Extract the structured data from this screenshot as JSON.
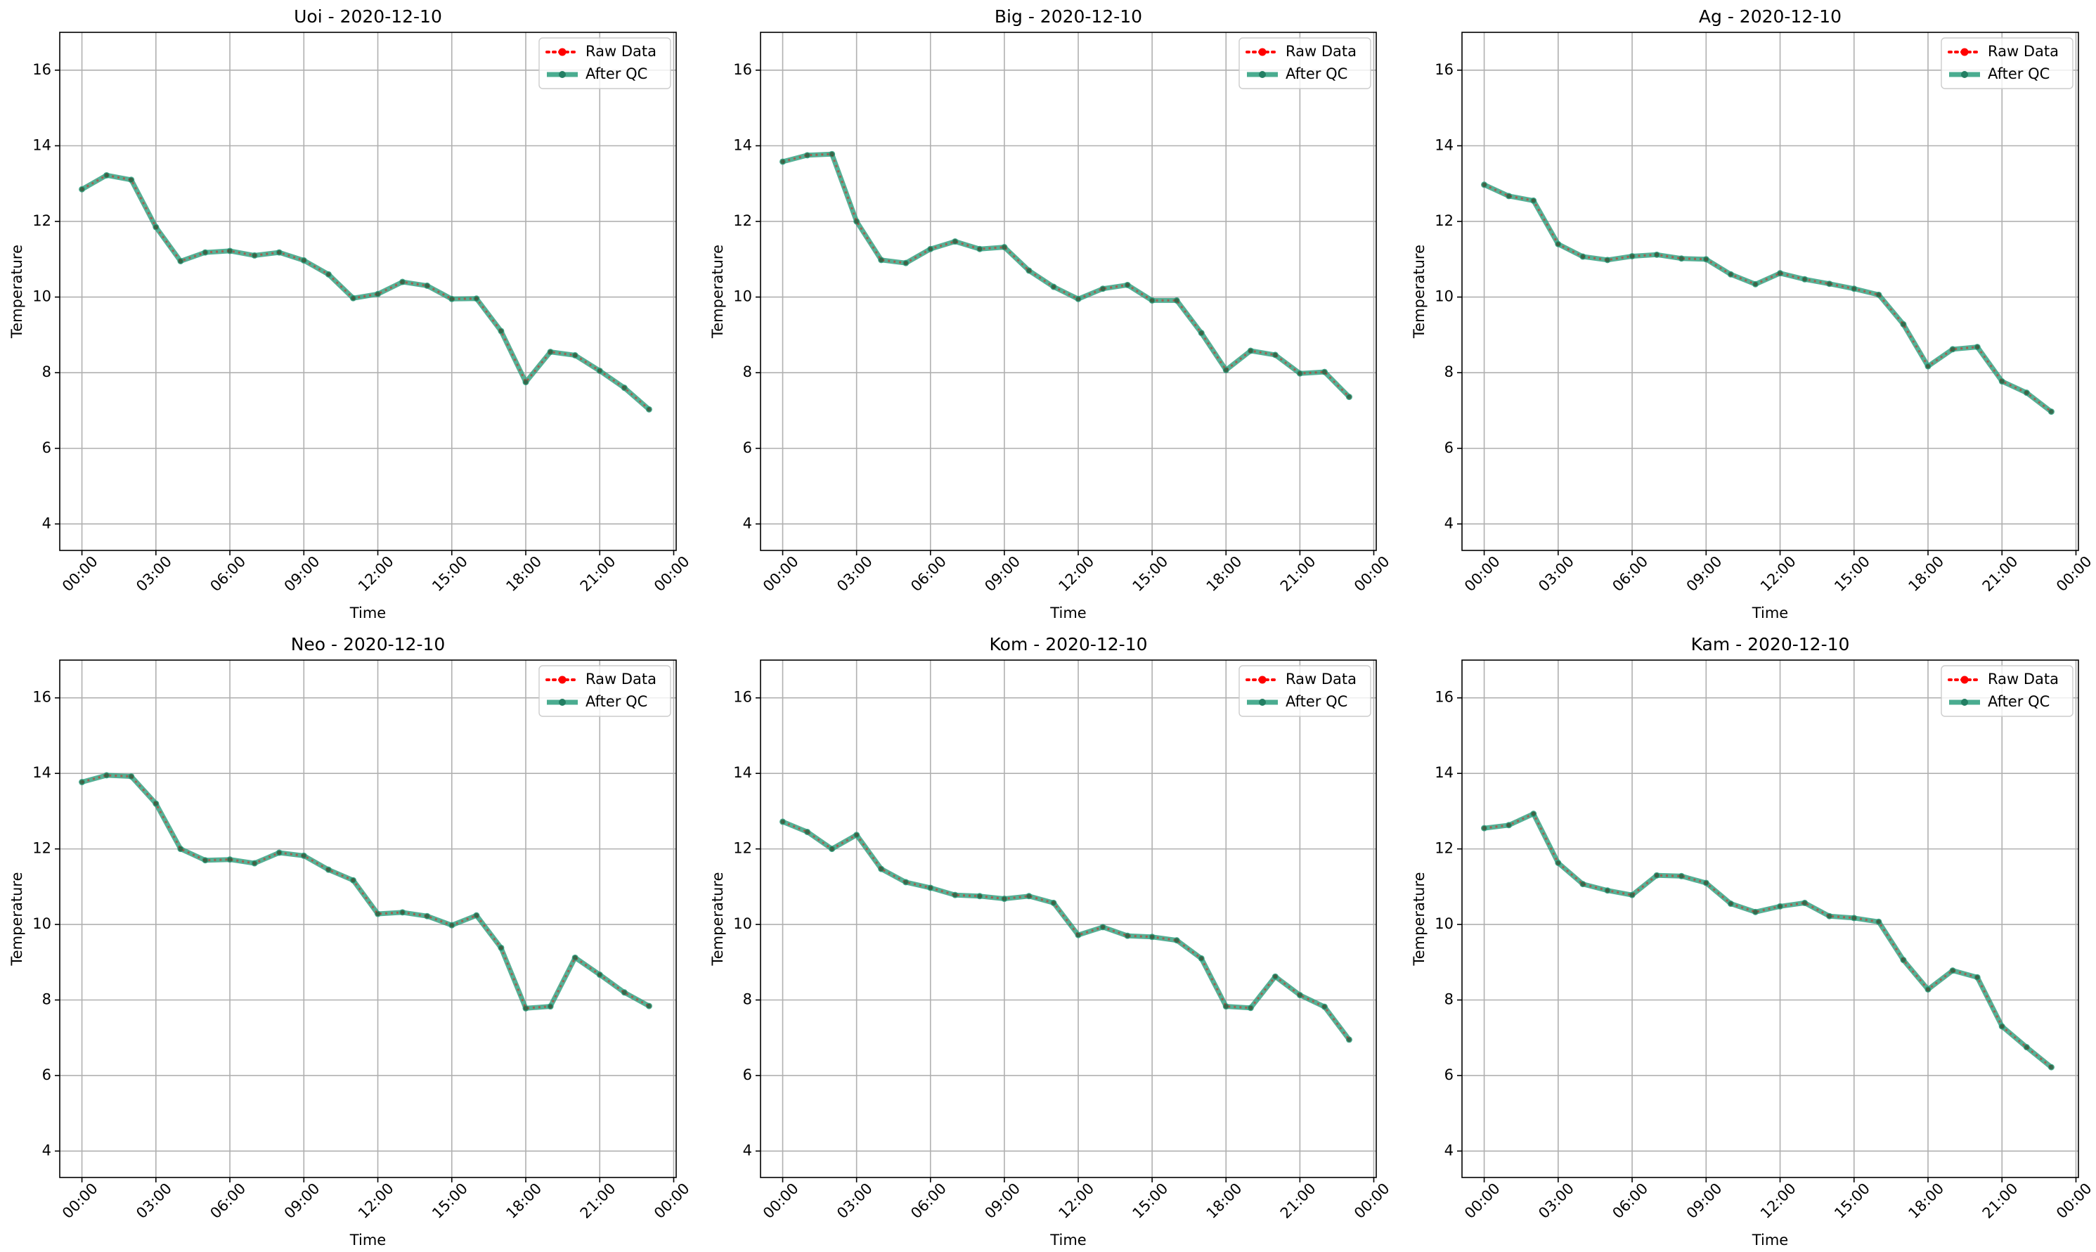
{
  "figure": {
    "y_ticks": [
      "4",
      "6",
      "8",
      "10",
      "12",
      "14",
      "16"
    ],
    "x_ticks": [
      "00:00",
      "03:00",
      "06:00",
      "09:00",
      "12:00",
      "15:00",
      "18:00",
      "21:00",
      "00:00"
    ]
  },
  "chart_data": [
    {
      "type": "line",
      "title": "Uoi - 2020-12-10",
      "xlabel": "Time",
      "ylabel": "Temperature",
      "ylim": [
        3.3,
        17.0
      ],
      "xlim": [
        -0.9,
        24.1
      ],
      "grid": true,
      "legend_position": "upper right",
      "x": [
        0,
        1,
        2,
        3,
        4,
        5,
        6,
        7,
        8,
        9,
        10,
        11,
        12,
        13,
        14,
        15,
        16,
        17,
        18,
        19,
        20,
        21,
        22,
        23
      ],
      "series": [
        {
          "name": "Raw Data",
          "color": "#ff0000",
          "style": "dotted",
          "marker": "circle",
          "values": [
            12.85,
            13.22,
            13.1,
            11.85,
            10.95,
            11.18,
            11.22,
            11.1,
            11.18,
            10.97,
            10.6,
            9.97,
            10.08,
            10.4,
            10.3,
            9.95,
            9.96,
            9.1,
            7.75,
            8.55,
            8.46,
            8.05,
            7.6,
            7.03
          ]
        },
        {
          "name": "After QC",
          "color": "#2a9d7c",
          "style": "solid",
          "marker": "circle",
          "values": [
            12.85,
            13.22,
            13.1,
            11.85,
            10.95,
            11.18,
            11.22,
            11.1,
            11.18,
            10.97,
            10.6,
            9.97,
            10.08,
            10.4,
            10.3,
            9.95,
            9.96,
            9.1,
            7.75,
            8.55,
            8.46,
            8.05,
            7.6,
            7.03
          ]
        }
      ]
    },
    {
      "type": "line",
      "title": "Big - 2020-12-10",
      "xlabel": "Time",
      "ylabel": "Temperature",
      "ylim": [
        3.3,
        17.0
      ],
      "xlim": [
        -0.9,
        24.1
      ],
      "grid": true,
      "legend_position": "upper right",
      "x": [
        0,
        1,
        2,
        3,
        4,
        5,
        6,
        7,
        8,
        9,
        10,
        11,
        12,
        13,
        14,
        15,
        16,
        17,
        18,
        19,
        20,
        21,
        22,
        23
      ],
      "series": [
        {
          "name": "Raw Data",
          "color": "#ff0000",
          "style": "dotted",
          "marker": "circle",
          "values": [
            13.58,
            13.75,
            13.78,
            12.0,
            10.98,
            10.9,
            11.27,
            11.47,
            11.27,
            11.32,
            10.7,
            10.27,
            9.95,
            10.22,
            10.32,
            9.91,
            9.91,
            9.05,
            8.07,
            8.58,
            8.47,
            7.98,
            8.02,
            7.36
          ]
        },
        {
          "name": "After QC",
          "color": "#2a9d7c",
          "style": "solid",
          "marker": "circle",
          "values": [
            13.58,
            13.75,
            13.78,
            12.0,
            10.98,
            10.9,
            11.27,
            11.47,
            11.27,
            11.32,
            10.7,
            10.27,
            9.95,
            10.22,
            10.32,
            9.91,
            9.91,
            9.05,
            8.07,
            8.58,
            8.47,
            7.98,
            8.02,
            7.36
          ]
        }
      ]
    },
    {
      "type": "line",
      "title": "Ag - 2020-12-10",
      "xlabel": "Time",
      "ylabel": "Temperature",
      "ylim": [
        3.3,
        17.0
      ],
      "xlim": [
        -0.9,
        24.1
      ],
      "grid": true,
      "legend_position": "upper right",
      "x": [
        0,
        1,
        2,
        3,
        4,
        5,
        6,
        7,
        8,
        9,
        10,
        11,
        12,
        13,
        14,
        15,
        16,
        17,
        18,
        19,
        20,
        21,
        22,
        23
      ],
      "series": [
        {
          "name": "Raw Data",
          "color": "#ff0000",
          "style": "dotted",
          "marker": "circle",
          "values": [
            12.97,
            12.67,
            12.55,
            11.4,
            11.07,
            10.98,
            11.08,
            11.12,
            11.02,
            11.0,
            10.6,
            10.34,
            10.63,
            10.47,
            10.35,
            10.22,
            10.06,
            9.28,
            8.17,
            8.62,
            8.68,
            7.77,
            7.47,
            6.97
          ]
        },
        {
          "name": "After QC",
          "color": "#2a9d7c",
          "style": "solid",
          "marker": "circle",
          "values": [
            12.97,
            12.67,
            12.55,
            11.4,
            11.07,
            10.98,
            11.08,
            11.12,
            11.02,
            11.0,
            10.6,
            10.34,
            10.63,
            10.47,
            10.35,
            10.22,
            10.06,
            9.28,
            8.17,
            8.62,
            8.68,
            7.77,
            7.47,
            6.97
          ]
        }
      ]
    },
    {
      "type": "line",
      "title": "Neo - 2020-12-10",
      "xlabel": "Time",
      "ylabel": "Temperature",
      "ylim": [
        3.3,
        17.0
      ],
      "xlim": [
        -0.9,
        24.1
      ],
      "grid": true,
      "legend_position": "upper right",
      "x": [
        0,
        1,
        2,
        3,
        4,
        5,
        6,
        7,
        8,
        9,
        10,
        11,
        12,
        13,
        14,
        15,
        16,
        17,
        18,
        19,
        20,
        21,
        22,
        23
      ],
      "series": [
        {
          "name": "Raw Data",
          "color": "#ff0000",
          "style": "dotted",
          "marker": "circle",
          "values": [
            13.77,
            13.95,
            13.92,
            13.2,
            12.0,
            11.7,
            11.72,
            11.62,
            11.9,
            11.82,
            11.45,
            11.17,
            10.28,
            10.32,
            10.22,
            9.98,
            10.24,
            9.38,
            7.78,
            7.83,
            9.12,
            8.67,
            8.2,
            7.84
          ]
        },
        {
          "name": "After QC",
          "color": "#2a9d7c",
          "style": "solid",
          "marker": "circle",
          "values": [
            13.77,
            13.95,
            13.92,
            13.2,
            12.0,
            11.7,
            11.72,
            11.62,
            11.9,
            11.82,
            11.45,
            11.17,
            10.28,
            10.32,
            10.22,
            9.98,
            10.24,
            9.38,
            7.78,
            7.83,
            9.12,
            8.67,
            8.2,
            7.84
          ]
        }
      ]
    },
    {
      "type": "line",
      "title": "Kom - 2020-12-10",
      "xlabel": "Time",
      "ylabel": "Temperature",
      "ylim": [
        3.3,
        17.0
      ],
      "xlim": [
        -0.9,
        24.1
      ],
      "grid": true,
      "legend_position": "upper right",
      "x": [
        0,
        1,
        2,
        3,
        4,
        5,
        6,
        7,
        8,
        9,
        10,
        11,
        12,
        13,
        14,
        15,
        16,
        17,
        18,
        19,
        20,
        21,
        22,
        23
      ],
      "series": [
        {
          "name": "Raw Data",
          "color": "#ff0000",
          "style": "dotted",
          "marker": "circle",
          "values": [
            12.72,
            12.45,
            12.0,
            12.37,
            11.47,
            11.12,
            10.97,
            10.78,
            10.75,
            10.68,
            10.75,
            10.57,
            9.72,
            9.93,
            9.7,
            9.67,
            9.58,
            9.1,
            7.83,
            7.79,
            8.62,
            8.13,
            7.82,
            6.95
          ]
        },
        {
          "name": "After QC",
          "color": "#2a9d7c",
          "style": "solid",
          "marker": "circle",
          "values": [
            12.72,
            12.45,
            12.0,
            12.37,
            11.47,
            11.12,
            10.97,
            10.78,
            10.75,
            10.68,
            10.75,
            10.57,
            9.72,
            9.93,
            9.7,
            9.67,
            9.58,
            9.1,
            7.83,
            7.79,
            8.62,
            8.13,
            7.82,
            6.95
          ]
        }
      ]
    },
    {
      "type": "line",
      "title": "Kam - 2020-12-10",
      "xlabel": "Time",
      "ylabel": "Temperature",
      "ylim": [
        3.3,
        17.0
      ],
      "xlim": [
        -0.9,
        24.1
      ],
      "grid": true,
      "legend_position": "upper right",
      "x": [
        0,
        1,
        2,
        3,
        4,
        5,
        6,
        7,
        8,
        9,
        10,
        11,
        12,
        13,
        14,
        15,
        16,
        17,
        18,
        19,
        20,
        21,
        22,
        23
      ],
      "series": [
        {
          "name": "Raw Data",
          "color": "#ff0000",
          "style": "dotted",
          "marker": "circle",
          "values": [
            12.55,
            12.63,
            12.93,
            11.63,
            11.07,
            10.9,
            10.78,
            11.3,
            11.28,
            11.1,
            10.55,
            10.33,
            10.48,
            10.57,
            10.22,
            10.17,
            10.07,
            9.06,
            8.28,
            8.78,
            8.6,
            7.3,
            6.75,
            6.22
          ]
        },
        {
          "name": "After QC",
          "color": "#2a9d7c",
          "style": "solid",
          "marker": "circle",
          "values": [
            12.55,
            12.63,
            12.93,
            11.63,
            11.07,
            10.9,
            10.78,
            11.3,
            11.28,
            11.1,
            10.55,
            10.33,
            10.48,
            10.57,
            10.22,
            10.17,
            10.07,
            9.06,
            8.28,
            8.78,
            8.6,
            7.3,
            6.75,
            6.22
          ]
        }
      ]
    }
  ]
}
